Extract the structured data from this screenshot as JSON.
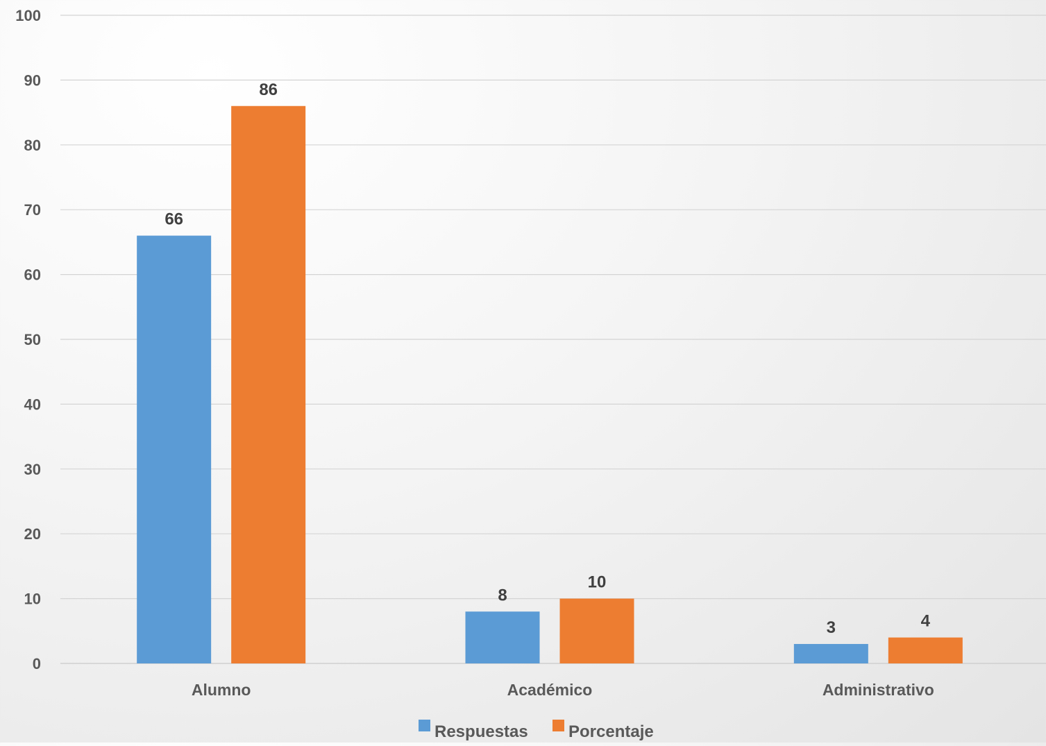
{
  "chart_data": {
    "type": "bar",
    "categories": [
      "Alumno",
      "Académico",
      "Administrativo"
    ],
    "series": [
      {
        "name": "Respuestas",
        "values": [
          66,
          8,
          3
        ],
        "color": "#5B9BD5"
      },
      {
        "name": "Porcentaje",
        "values": [
          86,
          10,
          4
        ],
        "color": "#ED7D31"
      }
    ],
    "ylim": [
      0,
      100
    ],
    "yticks": [
      "0",
      "10",
      "20",
      "30",
      "40",
      "50",
      "60",
      "70",
      "80",
      "90",
      "100"
    ],
    "grid": true,
    "data_labels": true,
    "legend_position": "bottom"
  }
}
